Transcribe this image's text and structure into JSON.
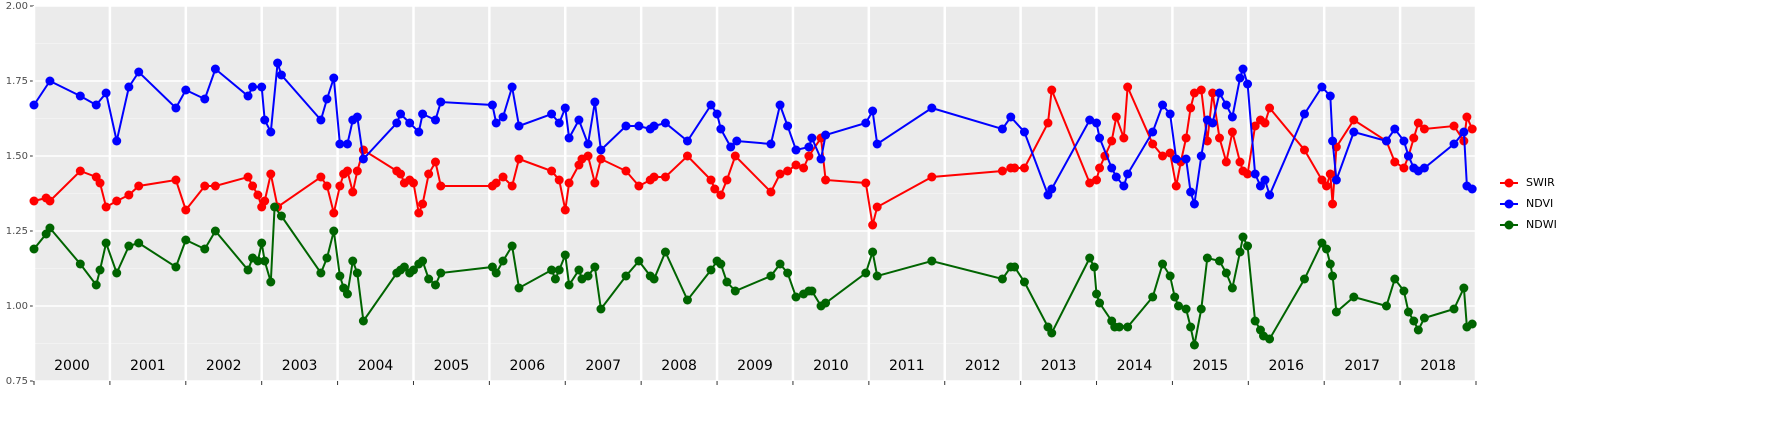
{
  "chart_data": {
    "type": "line",
    "xlim": [
      2000,
      2019
    ],
    "xticks": [
      2000,
      2001,
      2002,
      2003,
      2004,
      2005,
      2006,
      2007,
      2008,
      2009,
      2010,
      2011,
      2012,
      2013,
      2014,
      2015,
      2016,
      2017,
      2018,
      2019
    ],
    "year_labels": [
      "2000",
      "2001",
      "2002",
      "2003",
      "2004",
      "2005",
      "2006",
      "2007",
      "2008",
      "2009",
      "2010",
      "2011",
      "2012",
      "2013",
      "2014",
      "2015",
      "2016",
      "2017",
      "2018"
    ],
    "ylim": [
      0.75,
      2.0
    ],
    "yticks": [
      {
        "value": 0.75,
        "label": "0.75"
      },
      {
        "value": 1.0,
        "label": "1.00"
      },
      {
        "value": 1.25,
        "label": "1.25"
      },
      {
        "value": 1.5,
        "label": "1.50"
      },
      {
        "value": 1.75,
        "label": "1.75"
      },
      {
        "value": 2.0,
        "label": "2.00"
      }
    ],
    "grid": true,
    "legend": "right",
    "series": [
      {
        "name": "SWIR",
        "color": "#ff0000",
        "x": [
          2000.0,
          2000.16,
          2000.21,
          2000.61,
          2000.82,
          2000.87,
          2000.95,
          2001.09,
          2001.25,
          2001.38,
          2001.87,
          2002.0,
          2002.25,
          2002.39,
          2002.82,
          2002.88,
          2002.95,
          2003.0,
          2003.04,
          2003.12,
          2003.21,
          2003.78,
          2003.86,
          2003.95,
          2004.03,
          2004.08,
          2004.13,
          2004.2,
          2004.26,
          2004.34,
          2004.78,
          2004.83,
          2004.88,
          2004.95,
          2005.0,
          2005.07,
          2005.12,
          2005.2,
          2005.29,
          2005.36,
          2006.04,
          2006.09,
          2006.18,
          2006.3,
          2006.39,
          2006.82,
          2006.92,
          2007.0,
          2007.05,
          2007.18,
          2007.22,
          2007.3,
          2007.39,
          2007.47,
          2007.8,
          2007.97,
          2008.12,
          2008.17,
          2008.32,
          2008.61,
          2008.92,
          2008.97,
          2009.05,
          2009.13,
          2009.24,
          2009.71,
          2009.83,
          2009.93,
          2010.04,
          2010.14,
          2010.21,
          2010.37,
          2010.43,
          2010.96,
          2011.05,
          2011.11,
          2011.83,
          2012.76,
          2012.87,
          2012.92,
          2013.05,
          2013.36,
          2013.41,
          2013.91,
          2014.0,
          2014.04,
          2014.11,
          2014.2,
          2014.26,
          2014.36,
          2014.41,
          2014.74,
          2014.87,
          2014.97,
          2015.05,
          2015.11,
          2015.18,
          2015.24,
          2015.29,
          2015.38,
          2015.46,
          2015.53,
          2015.62,
          2015.71,
          2015.79,
          2015.89,
          2015.93,
          2015.99,
          2016.09,
          2016.16,
          2016.22,
          2016.28,
          2016.74,
          2016.97,
          2017.03,
          2017.08,
          2017.11,
          2017.16,
          2017.39,
          2017.82,
          2017.93,
          2018.05,
          2018.11,
          2018.18,
          2018.24,
          2018.32,
          2018.71,
          2018.84,
          2018.88,
          2018.95
        ],
        "values": [
          1.35,
          1.36,
          1.35,
          1.45,
          1.43,
          1.41,
          1.33,
          1.35,
          1.37,
          1.4,
          1.42,
          1.32,
          1.4,
          1.4,
          1.43,
          1.4,
          1.37,
          1.33,
          1.35,
          1.44,
          1.33,
          1.43,
          1.4,
          1.31,
          1.4,
          1.44,
          1.45,
          1.38,
          1.45,
          1.52,
          1.45,
          1.44,
          1.41,
          1.42,
          1.41,
          1.31,
          1.34,
          1.44,
          1.48,
          1.4,
          1.4,
          1.41,
          1.43,
          1.4,
          1.49,
          1.45,
          1.42,
          1.32,
          1.41,
          1.47,
          1.49,
          1.5,
          1.41,
          1.49,
          1.45,
          1.4,
          1.42,
          1.43,
          1.43,
          1.5,
          1.42,
          1.39,
          1.37,
          1.42,
          1.5,
          1.38,
          1.44,
          1.45,
          1.47,
          1.46,
          1.5,
          1.56,
          1.42,
          1.41,
          1.27,
          1.33,
          1.43,
          1.45,
          1.46,
          1.46,
          1.46,
          1.61,
          1.72,
          1.41,
          1.42,
          1.46,
          1.5,
          1.55,
          1.63,
          1.56,
          1.73,
          1.54,
          1.5,
          1.51,
          1.4,
          1.48,
          1.56,
          1.66,
          1.71,
          1.72,
          1.55,
          1.71,
          1.56,
          1.48,
          1.58,
          1.48,
          1.45,
          1.44,
          1.6,
          1.62,
          1.61,
          1.66,
          1.52,
          1.42,
          1.4,
          1.44,
          1.34,
          1.53,
          1.62,
          1.55,
          1.48,
          1.46,
          1.5,
          1.56,
          1.61,
          1.59,
          1.6,
          1.55,
          1.63,
          1.59
        ]
      },
      {
        "name": "NDVI",
        "color": "#0000ff",
        "x": [
          2000.0,
          2000.21,
          2000.61,
          2000.82,
          2000.95,
          2001.09,
          2001.25,
          2001.38,
          2001.87,
          2002.0,
          2002.25,
          2002.39,
          2002.82,
          2002.88,
          2003.0,
          2003.04,
          2003.12,
          2003.21,
          2003.26,
          2003.78,
          2003.86,
          2003.95,
          2004.03,
          2004.13,
          2004.2,
          2004.26,
          2004.34,
          2004.78,
          2004.83,
          2004.95,
          2005.07,
          2005.12,
          2005.29,
          2005.36,
          2006.04,
          2006.09,
          2006.18,
          2006.3,
          2006.39,
          2006.82,
          2006.92,
          2007.0,
          2007.05,
          2007.18,
          2007.3,
          2007.39,
          2007.47,
          2007.8,
          2007.97,
          2008.12,
          2008.17,
          2008.32,
          2008.61,
          2008.92,
          2009.0,
          2009.05,
          2009.18,
          2009.26,
          2009.71,
          2009.83,
          2009.93,
          2010.04,
          2010.21,
          2010.25,
          2010.37,
          2010.43,
          2010.96,
          2011.05,
          2011.11,
          2011.83,
          2012.76,
          2012.87,
          2013.05,
          2013.36,
          2013.41,
          2013.91,
          2014.0,
          2014.04,
          2014.2,
          2014.26,
          2014.36,
          2014.41,
          2014.74,
          2014.87,
          2014.97,
          2015.05,
          2015.18,
          2015.24,
          2015.29,
          2015.38,
          2015.46,
          2015.53,
          2015.62,
          2015.71,
          2015.79,
          2015.89,
          2015.93,
          2015.99,
          2016.09,
          2016.16,
          2016.22,
          2016.28,
          2016.74,
          2016.97,
          2017.08,
          2017.11,
          2017.16,
          2017.39,
          2017.82,
          2017.93,
          2018.05,
          2018.11,
          2018.18,
          2018.24,
          2018.32,
          2018.71,
          2018.84,
          2018.88,
          2018.95
        ],
        "values": [
          1.67,
          1.75,
          1.7,
          1.67,
          1.71,
          1.55,
          1.73,
          1.78,
          1.66,
          1.72,
          1.69,
          1.79,
          1.7,
          1.73,
          1.73,
          1.62,
          1.58,
          1.81,
          1.77,
          1.62,
          1.69,
          1.76,
          1.54,
          1.54,
          1.62,
          1.63,
          1.49,
          1.61,
          1.64,
          1.61,
          1.58,
          1.64,
          1.62,
          1.68,
          1.67,
          1.61,
          1.63,
          1.73,
          1.6,
          1.64,
          1.61,
          1.66,
          1.56,
          1.62,
          1.54,
          1.68,
          1.52,
          1.6,
          1.6,
          1.59,
          1.6,
          1.61,
          1.55,
          1.67,
          1.64,
          1.59,
          1.53,
          1.55,
          1.54,
          1.67,
          1.6,
          1.52,
          1.53,
          1.56,
          1.49,
          1.57,
          1.61,
          1.65,
          1.54,
          1.66,
          1.59,
          1.63,
          1.58,
          1.37,
          1.39,
          1.62,
          1.61,
          1.56,
          1.46,
          1.43,
          1.4,
          1.44,
          1.58,
          1.67,
          1.64,
          1.49,
          1.49,
          1.38,
          1.34,
          1.5,
          1.62,
          1.61,
          1.71,
          1.67,
          1.63,
          1.76,
          1.79,
          1.74,
          1.44,
          1.4,
          1.42,
          1.37,
          1.64,
          1.73,
          1.7,
          1.55,
          1.42,
          1.58,
          1.55,
          1.59,
          1.55,
          1.5,
          1.46,
          1.45,
          1.46,
          1.54,
          1.58,
          1.4,
          1.39
        ]
      },
      {
        "name": "NDWI",
        "color": "#006400",
        "x": [
          2000.0,
          2000.16,
          2000.21,
          2000.61,
          2000.82,
          2000.87,
          2000.95,
          2001.09,
          2001.25,
          2001.38,
          2001.87,
          2002.0,
          2002.25,
          2002.39,
          2002.82,
          2002.88,
          2002.95,
          2003.0,
          2003.04,
          2003.12,
          2003.17,
          2003.26,
          2003.78,
          2003.86,
          2003.95,
          2004.03,
          2004.08,
          2004.13,
          2004.2,
          2004.26,
          2004.34,
          2004.78,
          2004.83,
          2004.88,
          2004.95,
          2005.0,
          2005.07,
          2005.12,
          2005.2,
          2005.29,
          2005.36,
          2006.04,
          2006.09,
          2006.18,
          2006.3,
          2006.39,
          2006.82,
          2006.87,
          2006.92,
          2007.0,
          2007.05,
          2007.18,
          2007.22,
          2007.3,
          2007.39,
          2007.47,
          2007.8,
          2007.97,
          2008.12,
          2008.17,
          2008.32,
          2008.61,
          2008.92,
          2009.0,
          2009.05,
          2009.13,
          2009.24,
          2009.71,
          2009.83,
          2009.93,
          2010.04,
          2010.14,
          2010.21,
          2010.25,
          2010.37,
          2010.43,
          2010.96,
          2011.05,
          2011.11,
          2011.83,
          2012.76,
          2012.87,
          2012.92,
          2013.05,
          2013.36,
          2013.41,
          2013.91,
          2013.97,
          2014.0,
          2014.04,
          2014.2,
          2014.24,
          2014.3,
          2014.41,
          2014.74,
          2014.87,
          2014.97,
          2015.03,
          2015.08,
          2015.18,
          2015.24,
          2015.29,
          2015.38,
          2015.46,
          2015.62,
          2015.71,
          2015.79,
          2015.89,
          2015.93,
          2015.99,
          2016.09,
          2016.16,
          2016.2,
          2016.28,
          2016.74,
          2016.97,
          2017.03,
          2017.08,
          2017.11,
          2017.16,
          2017.39,
          2017.82,
          2017.93,
          2018.05,
          2018.11,
          2018.18,
          2018.24,
          2018.32,
          2018.71,
          2018.84,
          2018.88,
          2018.95
        ],
        "values": [
          1.19,
          1.24,
          1.26,
          1.14,
          1.07,
          1.12,
          1.21,
          1.11,
          1.2,
          1.21,
          1.13,
          1.22,
          1.19,
          1.25,
          1.12,
          1.16,
          1.15,
          1.21,
          1.15,
          1.08,
          1.33,
          1.3,
          1.11,
          1.16,
          1.25,
          1.1,
          1.06,
          1.04,
          1.15,
          1.11,
          0.95,
          1.11,
          1.12,
          1.13,
          1.11,
          1.12,
          1.14,
          1.15,
          1.09,
          1.07,
          1.11,
          1.13,
          1.11,
          1.15,
          1.2,
          1.06,
          1.12,
          1.09,
          1.12,
          1.17,
          1.07,
          1.12,
          1.09,
          1.1,
          1.13,
          0.99,
          1.1,
          1.15,
          1.1,
          1.09,
          1.18,
          1.02,
          1.12,
          1.15,
          1.14,
          1.08,
          1.05,
          1.1,
          1.14,
          1.11,
          1.03,
          1.04,
          1.05,
          1.05,
          1.0,
          1.01,
          1.11,
          1.18,
          1.1,
          1.15,
          1.09,
          1.13,
          1.13,
          1.08,
          0.93,
          0.91,
          1.16,
          1.13,
          1.04,
          1.01,
          0.95,
          0.93,
          0.93,
          0.93,
          1.03,
          1.14,
          1.1,
          1.03,
          1.0,
          0.99,
          0.93,
          0.87,
          0.99,
          1.16,
          1.15,
          1.11,
          1.06,
          1.18,
          1.23,
          1.2,
          0.95,
          0.92,
          0.9,
          0.89,
          1.09,
          1.21,
          1.19,
          1.14,
          1.1,
          0.98,
          1.03,
          1.0,
          1.09,
          1.05,
          0.98,
          0.95,
          0.92,
          0.96,
          0.99,
          1.06,
          0.93,
          0.94
        ]
      }
    ]
  }
}
